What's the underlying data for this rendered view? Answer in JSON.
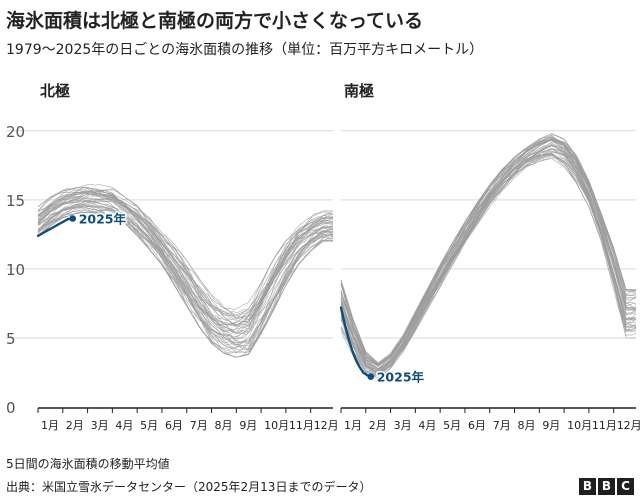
{
  "header": {
    "title": "海氷面積は北極と南極の両方で小さくなっている",
    "subtitle": "1979〜2025年の日ごとの海氷面積の推移（単位：百万平方キロメートル）"
  },
  "footer": {
    "note": "5日間の海氷面積の移動平均値",
    "source": "出典：米国立雪氷データセンター（2025年2月13日までのデータ）",
    "logo_letters": [
      "B",
      "B",
      "C"
    ]
  },
  "colors": {
    "history": "#9c9c9c",
    "highlight": "#0f4d7a",
    "grid": "#d9d9d9",
    "axis": "#222222",
    "text": "#222222"
  },
  "chart_data": [
    {
      "type": "line",
      "panel_title": "北極",
      "x_unit": "month",
      "x_categories": [
        "1月",
        "2月",
        "3月",
        "4月",
        "5月",
        "6月",
        "7月",
        "8月",
        "9月",
        "10月",
        "11月",
        "12月"
      ],
      "ylim": [
        0,
        21
      ],
      "yticks": [
        0,
        5,
        10,
        15,
        20
      ],
      "grid": true,
      "history_years": "1979-2024",
      "history_envelope": {
        "x": [
          1.0,
          1.5,
          2.0,
          2.5,
          3.0,
          3.5,
          4.0,
          4.5,
          5.0,
          5.5,
          6.0,
          6.5,
          7.0,
          7.5,
          8.0,
          8.5,
          9.0,
          9.5,
          10.0,
          10.5,
          11.0,
          11.5,
          12.0,
          12.5
        ],
        "low": [
          12.3,
          13.1,
          13.7,
          14.0,
          14.1,
          14.0,
          13.8,
          13.3,
          12.4,
          11.4,
          10.3,
          8.8,
          7.3,
          5.8,
          4.6,
          3.9,
          3.6,
          3.8,
          5.3,
          7.0,
          8.8,
          10.3,
          11.3,
          12.0
        ],
        "high": [
          14.5,
          15.2,
          15.7,
          16.0,
          16.2,
          16.1,
          15.9,
          15.2,
          14.6,
          13.8,
          12.7,
          11.8,
          10.6,
          9.3,
          8.1,
          7.4,
          7.2,
          7.6,
          9.0,
          10.7,
          12.1,
          13.3,
          13.9,
          14.2
        ]
      },
      "series": [
        {
          "name": "2025年",
          "x": [
            1.0,
            1.2,
            1.4,
            1.6,
            1.8,
            2.0,
            2.2,
            2.4
          ],
          "y": [
            12.4,
            12.6,
            12.8,
            13.0,
            13.2,
            13.4,
            13.6,
            13.65
          ]
        }
      ]
    },
    {
      "type": "line",
      "panel_title": "南極",
      "x_unit": "month",
      "x_categories": [
        "1月",
        "2月",
        "3月",
        "4月",
        "5月",
        "6月",
        "7月",
        "8月",
        "9月",
        "10月",
        "11月",
        "12月"
      ],
      "ylim": [
        0,
        21
      ],
      "yticks": [
        0,
        5,
        10,
        15,
        20
      ],
      "grid": true,
      "history_years": "1979-2024",
      "history_envelope": {
        "x": [
          1.0,
          1.5,
          2.0,
          2.5,
          3.0,
          3.5,
          4.0,
          4.5,
          5.0,
          5.5,
          6.0,
          6.5,
          7.0,
          7.5,
          8.0,
          8.5,
          9.0,
          9.5,
          10.0,
          10.5,
          11.0,
          11.5,
          12.0,
          12.5
        ],
        "low": [
          5.5,
          3.6,
          2.4,
          2.1,
          2.8,
          4.0,
          5.5,
          7.1,
          8.7,
          10.3,
          11.8,
          13.2,
          14.5,
          15.6,
          16.6,
          17.4,
          17.8,
          18.0,
          17.4,
          16.2,
          14.5,
          12.0,
          8.5,
          5.0
        ],
        "high": [
          9.2,
          6.3,
          4.0,
          3.2,
          3.9,
          5.2,
          6.9,
          8.6,
          10.3,
          11.9,
          13.4,
          14.8,
          16.1,
          17.2,
          18.1,
          18.8,
          19.4,
          19.8,
          19.4,
          18.2,
          16.4,
          14.0,
          11.5,
          8.5
        ]
      },
      "series": [
        {
          "name": "2025年",
          "x": [
            1.0,
            1.15,
            1.3,
            1.45,
            1.6,
            1.75,
            1.9,
            2.05,
            2.2
          ],
          "y": [
            7.2,
            6.0,
            5.0,
            4.1,
            3.4,
            2.9,
            2.5,
            2.3,
            2.2
          ]
        }
      ]
    }
  ]
}
